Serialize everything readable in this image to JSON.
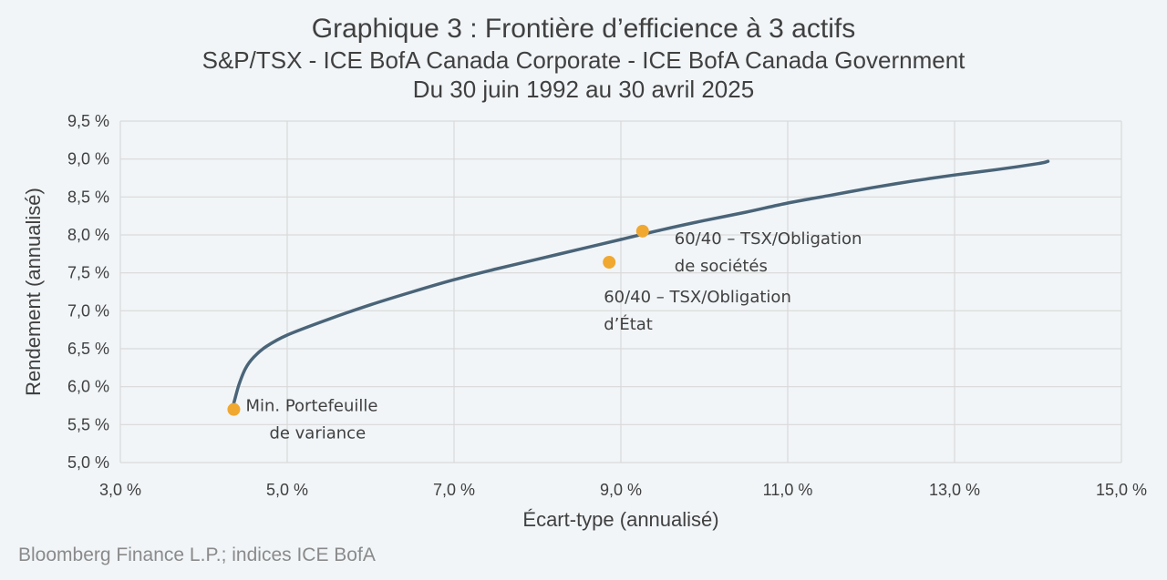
{
  "title": "Graphique 3 : Frontière d’efficience à 3 actifs",
  "subtitle1": "S&P/TSX - ICE BofA Canada Corporate - ICE BofA Canada Government",
  "subtitle2": "Du 30 juin 1992 au 30 avril 2025",
  "source": "Bloomberg Finance L.P.; indices ICE BofA",
  "colors": {
    "frontier": "#4a6478",
    "points": "#f0a830",
    "grid": "#d9d9d9"
  },
  "chart_data": {
    "type": "scatter",
    "xlabel": "Écart-type (annualisé)",
    "ylabel": "Rendement (annualisé)",
    "xlim": [
      3.0,
      15.0
    ],
    "ylim": [
      5.0,
      9.5
    ],
    "x_ticks": [
      "3,0 %",
      "5,0 %",
      "7,0 %",
      "9,0 %",
      "11,0 %",
      "13,0 %",
      "15,0 %"
    ],
    "y_ticks": [
      "5,0 %",
      "5,5 %",
      "6,0 %",
      "6,5 %",
      "7,0 %",
      "7,5 %",
      "8,0 %",
      "8,5 %",
      "9,0 %",
      "9,5 %"
    ],
    "grid": true,
    "frontier": {
      "x": [
        4.36,
        4.42,
        4.5,
        4.6,
        4.75,
        5.0,
        5.5,
        6.0,
        6.5,
        7.0,
        7.5,
        8.0,
        8.5,
        9.0,
        9.5,
        10.0,
        10.5,
        11.0,
        11.5,
        12.0,
        12.5,
        13.0,
        13.5,
        14.0,
        14.12
      ],
      "y": [
        5.78,
        6.02,
        6.24,
        6.39,
        6.53,
        6.68,
        6.89,
        7.08,
        7.25,
        7.41,
        7.55,
        7.68,
        7.81,
        7.94,
        8.07,
        8.19,
        8.3,
        8.42,
        8.52,
        8.62,
        8.71,
        8.79,
        8.86,
        8.94,
        8.97
      ]
    },
    "points": [
      {
        "x": 4.36,
        "y": 5.7,
        "label": [
          "Min. Portefeuille",
          "de variance"
        ]
      },
      {
        "x": 9.26,
        "y": 8.05,
        "label": [
          "60/40 – TSX/Obligation",
          "de sociétés"
        ]
      },
      {
        "x": 8.86,
        "y": 7.64,
        "label": [
          "60/40 – TSX/Obligation",
          "d’État"
        ]
      }
    ]
  }
}
